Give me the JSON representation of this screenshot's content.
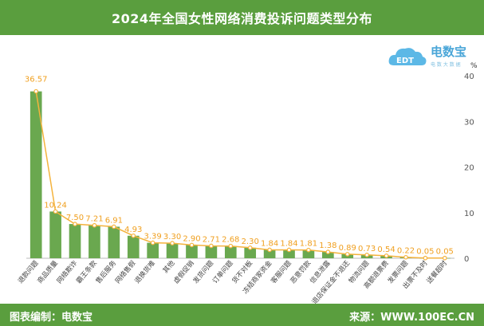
{
  "header": {
    "title": "2024年全国女性网络消费投诉问题类型分布"
  },
  "logo": {
    "name": "电数宝",
    "sub": "电 数 大  数 据",
    "unit": "%"
  },
  "footer": {
    "left": "图表编制：电数宝",
    "right": "来源：WWW.100EC.CN"
  },
  "colors": {
    "header": "#5a9e3e",
    "bar": "#6aa84f",
    "line": "#f4b33d",
    "label": "#f0a020",
    "logo": "#5cb8e6"
  },
  "chart_data": {
    "type": "bar",
    "title": "2024年全国女性网络消费投诉问题类型分布",
    "ylim": [
      0,
      40
    ],
    "yticks": [
      "0",
      "10",
      "20",
      "30",
      "40"
    ],
    "categories": [
      "退款问题",
      "商品质量",
      "网络欺诈",
      "霸王条款",
      "售后服务",
      "网络售假",
      "退换货难",
      "其他",
      "虚假促销",
      "发货问题",
      "订单问题",
      "货不对板",
      "冻结商家资金",
      "客服问题",
      "恶意罚款",
      "信息泄露",
      "退店保证金不退还",
      "物流问题",
      "高额退票费",
      "发票问题",
      "出票不及时",
      "送餐超时"
    ],
    "values": [
      36.57,
      10.24,
      7.5,
      7.21,
      6.91,
      4.93,
      3.39,
      3.3,
      2.9,
      2.71,
      2.68,
      2.3,
      1.84,
      1.84,
      1.81,
      1.38,
      0.89,
      0.73,
      0.54,
      0.22,
      0.05,
      0.05
    ],
    "value_labels": [
      "36.57",
      "10.24",
      "7.50",
      "7.21",
      "6.91",
      "4.93",
      "3.39",
      "3.30",
      "2.90",
      "2.71",
      "2.68",
      "2.30",
      "1.84",
      "1.84",
      "1.81",
      "1.38",
      "0.89",
      "0.73",
      "0.54",
      "0.22",
      "0.05",
      "0.05"
    ],
    "line_overlay": true,
    "grid": false
  }
}
